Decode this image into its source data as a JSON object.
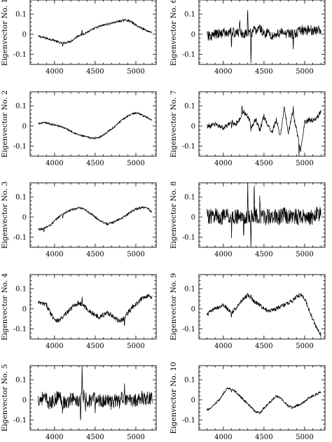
{
  "chart_data": [
    {
      "type": "line",
      "ylabel": "Eigenvector No. 1",
      "xlim": [
        3700,
        5250
      ],
      "ylim": [
        -0.15,
        0.17
      ],
      "xticks": [
        4000,
        4500,
        5000
      ],
      "yticks": [
        -0.1,
        0,
        0.1
      ],
      "ytick_labels": [
        "-0.1",
        "0",
        "0.1"
      ],
      "series": [
        {
          "x": [
            3800,
            3850,
            3900,
            3950,
            4000,
            4050,
            4100,
            4150,
            4200,
            4250,
            4300,
            4350,
            4400,
            4450,
            4500,
            4550,
            4600,
            4650,
            4700,
            4750,
            4800,
            4850,
            4900,
            4950,
            5000,
            5050,
            5100,
            5150,
            5200
          ],
          "y": [
            -0.01,
            -0.015,
            -0.02,
            -0.025,
            -0.03,
            -0.04,
            -0.045,
            -0.04,
            -0.035,
            -0.02,
            -0.005,
            0.0,
            0.01,
            0.02,
            0.03,
            0.038,
            0.045,
            0.05,
            0.055,
            0.06,
            0.065,
            0.068,
            0.07,
            0.06,
            0.045,
            0.035,
            0.025,
            0.015,
            0.01
          ],
          "noise": 0.006,
          "spikes": [
            [
              4100,
              -0.02
            ],
            [
              4340,
              0.02
            ],
            [
              4860,
              0.01
            ]
          ]
        }
      ]
    },
    {
      "type": "line",
      "ylabel": "Eigenvector No. 2",
      "xlim": [
        3700,
        5250
      ],
      "ylim": [
        -0.15,
        0.17
      ],
      "xticks": [
        4000,
        4500,
        5000
      ],
      "yticks": [
        -0.1,
        0,
        0.1
      ],
      "ytick_labels": [
        "-0.1",
        "0",
        "0.1"
      ],
      "series": [
        {
          "x": [
            3800,
            3850,
            3900,
            3950,
            4000,
            4050,
            4100,
            4150,
            4200,
            4250,
            4300,
            4350,
            4400,
            4450,
            4500,
            4550,
            4600,
            4650,
            4700,
            4750,
            4800,
            4850,
            4900,
            4950,
            5000,
            5050,
            5100,
            5150,
            5200
          ],
          "y": [
            0.01,
            0.015,
            0.015,
            0.01,
            0.005,
            0.0,
            -0.005,
            -0.015,
            -0.025,
            -0.035,
            -0.045,
            -0.05,
            -0.055,
            -0.06,
            -0.06,
            -0.055,
            -0.045,
            -0.03,
            -0.015,
            0.0,
            0.02,
            0.035,
            0.05,
            0.06,
            0.065,
            0.06,
            0.05,
            0.04,
            0.025
          ],
          "noise": 0.005,
          "spikes": []
        }
      ]
    },
    {
      "type": "line",
      "ylabel": "Eigenvector No. 3",
      "xlim": [
        3700,
        5250
      ],
      "ylim": [
        -0.15,
        0.17
      ],
      "xticks": [
        4000,
        4500,
        5000
      ],
      "yticks": [
        -0.1,
        0,
        0.1
      ],
      "ytick_labels": [
        "-0.1",
        "0",
        "0.1"
      ],
      "series": [
        {
          "x": [
            3800,
            3850,
            3900,
            3950,
            4000,
            4050,
            4100,
            4150,
            4200,
            4250,
            4300,
            4350,
            4400,
            4450,
            4500,
            4550,
            4600,
            4650,
            4700,
            4750,
            4800,
            4850,
            4900,
            4950,
            5000,
            5050,
            5100,
            5150,
            5200
          ],
          "y": [
            -0.06,
            -0.06,
            -0.05,
            -0.04,
            -0.02,
            0.0,
            0.015,
            0.025,
            0.035,
            0.04,
            0.045,
            0.04,
            0.03,
            0.015,
            0.0,
            -0.015,
            -0.025,
            -0.035,
            -0.03,
            -0.02,
            -0.01,
            0.0,
            0.015,
            0.03,
            0.04,
            0.045,
            0.05,
            0.04,
            0.025
          ],
          "noise": 0.006,
          "spikes": [
            [
              3870,
              -0.02
            ],
            [
              4100,
              -0.02
            ]
          ]
        }
      ]
    },
    {
      "type": "line",
      "ylabel": "Eigenvector No. 4",
      "xlim": [
        3700,
        5250
      ],
      "ylim": [
        -0.15,
        0.17
      ],
      "xticks": [
        4000,
        4500,
        5000
      ],
      "yticks": [
        -0.1,
        0,
        0.1
      ],
      "ytick_labels": [
        "-0.1",
        "0",
        "0.1"
      ],
      "series": [
        {
          "x": [
            3800,
            3850,
            3900,
            3950,
            4000,
            4050,
            4100,
            4150,
            4200,
            4250,
            4300,
            4350,
            4400,
            4450,
            4500,
            4550,
            4600,
            4650,
            4700,
            4750,
            4800,
            4850,
            4900,
            4950,
            5000,
            5050,
            5100,
            5150,
            5200
          ],
          "y": [
            0.03,
            0.025,
            0.02,
            -0.02,
            -0.05,
            -0.06,
            -0.04,
            -0.02,
            0.0,
            0.02,
            0.03,
            0.02,
            0.0,
            -0.02,
            -0.03,
            -0.04,
            -0.03,
            -0.02,
            -0.03,
            -0.05,
            -0.06,
            -0.05,
            -0.02,
            0.0,
            0.02,
            0.04,
            0.06,
            0.065,
            0.06
          ],
          "noise": 0.012,
          "spikes": [
            [
              4100,
              -0.025
            ],
            [
              4340,
              0.03
            ],
            [
              4860,
              -0.04
            ],
            [
              4960,
              0.02
            ]
          ]
        }
      ]
    },
    {
      "type": "line",
      "ylabel": "Eigenvector No. 5",
      "xlim": [
        3700,
        5250
      ],
      "ylim": [
        -0.15,
        0.17
      ],
      "xticks": [
        4000,
        4500,
        5000
      ],
      "yticks": [
        -0.1,
        0,
        0.1
      ],
      "ytick_labels": [
        "-0.1",
        "0",
        "0.1"
      ],
      "series": [
        {
          "x": [
            3800,
            3850,
            3900,
            3950,
            4000,
            4050,
            4100,
            4150,
            4200,
            4250,
            4300,
            4350,
            4400,
            4450,
            4500,
            4550,
            4600,
            4650,
            4700,
            4750,
            4800,
            4850,
            4900,
            4950,
            5000,
            5050,
            5100,
            5150,
            5200
          ],
          "y": [
            0.0,
            0.01,
            0.0,
            -0.02,
            0.0,
            0.02,
            0.0,
            -0.02,
            0.01,
            0.0,
            -0.01,
            0.02,
            0.0,
            -0.01,
            0.01,
            0.0,
            -0.01,
            0.01,
            -0.02,
            0.0,
            -0.01,
            0.02,
            -0.01,
            0.0,
            0.0,
            0.01,
            0.01,
            0.01,
            0.01
          ],
          "noise": 0.035,
          "spikes": [
            [
              4100,
              -0.06
            ],
            [
              4340,
              0.16
            ],
            [
              4320,
              -0.12
            ],
            [
              4380,
              -0.1
            ],
            [
              4860,
              0.08
            ],
            [
              4500,
              -0.08
            ]
          ]
        }
      ]
    },
    {
      "type": "line",
      "ylabel": "Eigenvector No. 6",
      "xlim": [
        3700,
        5250
      ],
      "ylim": [
        -0.15,
        0.17
      ],
      "xticks": [
        4000,
        4500,
        5000
      ],
      "yticks": [
        -0.1,
        0,
        0.1
      ],
      "ytick_labels": [
        "-0.1",
        "0",
        "0.1"
      ],
      "series": [
        {
          "x": [
            3800,
            3850,
            3900,
            3950,
            4000,
            4050,
            4100,
            4150,
            4200,
            4250,
            4300,
            4350,
            4400,
            4450,
            4500,
            4550,
            4600,
            4650,
            4700,
            4750,
            4800,
            4850,
            4900,
            4950,
            5000,
            5050,
            5100,
            5150,
            5200
          ],
          "y": [
            -0.01,
            -0.01,
            0.0,
            0.0,
            0.01,
            0.0,
            0.02,
            0.0,
            0.01,
            0.0,
            0.0,
            0.01,
            0.02,
            0.03,
            0.0,
            0.01,
            -0.01,
            0.0,
            0.01,
            0.0,
            0.01,
            0.0,
            0.0,
            0.02,
            0.02,
            0.02,
            0.02,
            0.02,
            0.02
          ],
          "noise": 0.025,
          "spikes": [
            [
              4100,
              -0.1
            ],
            [
              4300,
              0.15
            ],
            [
              4340,
              -0.15
            ],
            [
              4860,
              -0.08
            ],
            [
              4200,
              0.08
            ]
          ]
        }
      ]
    },
    {
      "type": "line",
      "ylabel": "Eigenvector No. 7",
      "xlim": [
        3700,
        5250
      ],
      "ylim": [
        -0.15,
        0.17
      ],
      "xticks": [
        4000,
        4500,
        5000
      ],
      "yticks": [
        -0.1,
        0,
        0.1
      ],
      "ytick_labels": [
        "-0.1",
        "0",
        "0.1"
      ],
      "series": [
        {
          "x": [
            3800,
            3850,
            3900,
            3950,
            4000,
            4050,
            4100,
            4150,
            4200,
            4250,
            4300,
            4350,
            4400,
            4450,
            4500,
            4550,
            4600,
            4650,
            4700,
            4750,
            4800,
            4850,
            4900,
            4950,
            5000,
            5050,
            5100,
            5150,
            5200
          ],
          "y": [
            0.0,
            0.0,
            0.01,
            0.0,
            -0.01,
            0.0,
            0.02,
            0.01,
            0.03,
            0.07,
            0.05,
            0.0,
            0.03,
            -0.02,
            0.05,
            0.0,
            -0.03,
            0.03,
            -0.05,
            0.09,
            -0.04,
            0.07,
            -0.02,
            -0.12,
            0.02,
            0.03,
            0.03,
            0.04,
            0.07
          ],
          "noise": 0.012,
          "spikes": [
            [
              4100,
              -0.03
            ],
            [
              4230,
              0.06
            ],
            [
              4340,
              -0.03
            ],
            [
              4860,
              0.05
            ],
            [
              4930,
              -0.07
            ]
          ]
        }
      ]
    },
    {
      "type": "line",
      "ylabel": "Eigenvector No. 8",
      "xlim": [
        3700,
        5250
      ],
      "ylim": [
        -0.15,
        0.17
      ],
      "xticks": [
        4000,
        4500,
        5000
      ],
      "yticks": [
        -0.1,
        0,
        0.1
      ],
      "ytick_labels": [
        "-0.1",
        "0",
        "0.1"
      ],
      "series": [
        {
          "x": [
            3800,
            3850,
            3900,
            3950,
            4000,
            4050,
            4100,
            4150,
            4200,
            4250,
            4300,
            4350,
            4400,
            4450,
            4500,
            4550,
            4600,
            4650,
            4700,
            4750,
            4800,
            4850,
            4900,
            4950,
            5000,
            5050,
            5100,
            5150,
            5200
          ],
          "y": [
            0.01,
            0.0,
            0.01,
            0.0,
            0.0,
            0.01,
            0.0,
            0.0,
            0.0,
            0.0,
            0.0,
            0.0,
            0.01,
            0.0,
            0.0,
            0.0,
            0.01,
            0.0,
            0.0,
            0.01,
            0.0,
            0.01,
            0.0,
            0.0,
            0.01,
            0.0,
            0.0,
            0.01,
            0.02
          ],
          "noise": 0.04,
          "spikes": [
            [
              4100,
              -0.08
            ],
            [
              4300,
              0.16
            ],
            [
              4340,
              -0.14
            ],
            [
              4380,
              0.15
            ],
            [
              4250,
              -0.1
            ],
            [
              4450,
              0.12
            ]
          ]
        }
      ]
    },
    {
      "type": "line",
      "ylabel": "Eigenvector No. 9",
      "xlim": [
        3700,
        5250
      ],
      "ylim": [
        -0.15,
        0.17
      ],
      "xticks": [
        4000,
        4500,
        5000
      ],
      "yticks": [
        -0.1,
        0,
        0.1
      ],
      "ytick_labels": [
        "-0.1",
        "0",
        "0.1"
      ],
      "series": [
        {
          "x": [
            3800,
            3850,
            3900,
            3950,
            4000,
            4050,
            4100,
            4150,
            4200,
            4250,
            4300,
            4350,
            4400,
            4450,
            4500,
            4550,
            4600,
            4650,
            4700,
            4750,
            4800,
            4850,
            4900,
            4950,
            5000,
            5050,
            5100,
            5150,
            5200
          ],
          "y": [
            -0.03,
            -0.01,
            0.0,
            0.01,
            0.02,
            0.0,
            -0.02,
            0.0,
            0.03,
            0.05,
            0.07,
            0.05,
            0.03,
            0.02,
            0.0,
            -0.01,
            -0.005,
            0.0,
            0.01,
            0.02,
            0.03,
            0.04,
            0.06,
            0.07,
            0.05,
            0.0,
            -0.05,
            -0.1,
            -0.13
          ],
          "noise": 0.01,
          "spikes": [
            [
              4100,
              -0.03
            ],
            [
              4340,
              0.03
            ]
          ]
        }
      ]
    },
    {
      "type": "line",
      "ylabel": "Eigenvector No. 10",
      "xlim": [
        3700,
        5250
      ],
      "ylim": [
        -0.15,
        0.17
      ],
      "xticks": [
        4000,
        4500,
        5000
      ],
      "yticks": [
        -0.1,
        0,
        0.1
      ],
      "ytick_labels": [
        "-0.1",
        "0",
        "0.1"
      ],
      "series": [
        {
          "x": [
            3800,
            3850,
            3900,
            3950,
            4000,
            4050,
            4100,
            4150,
            4200,
            4250,
            4300,
            4350,
            4400,
            4450,
            4500,
            4550,
            4600,
            4650,
            4700,
            4750,
            4800,
            4850,
            4900,
            4950,
            5000,
            5050,
            5100,
            5150,
            5200
          ],
          "y": [
            -0.05,
            -0.04,
            -0.02,
            0.0,
            0.03,
            0.06,
            0.055,
            0.04,
            0.02,
            0.0,
            -0.02,
            -0.04,
            -0.06,
            -0.065,
            -0.04,
            -0.02,
            0.0,
            0.02,
            0.01,
            -0.01,
            -0.03,
            -0.04,
            -0.03,
            -0.02,
            -0.01,
            0.01,
            0.02,
            0.03,
            0.04
          ],
          "noise": 0.006,
          "spikes": [
            [
              4100,
              -0.02
            ]
          ]
        }
      ]
    }
  ]
}
